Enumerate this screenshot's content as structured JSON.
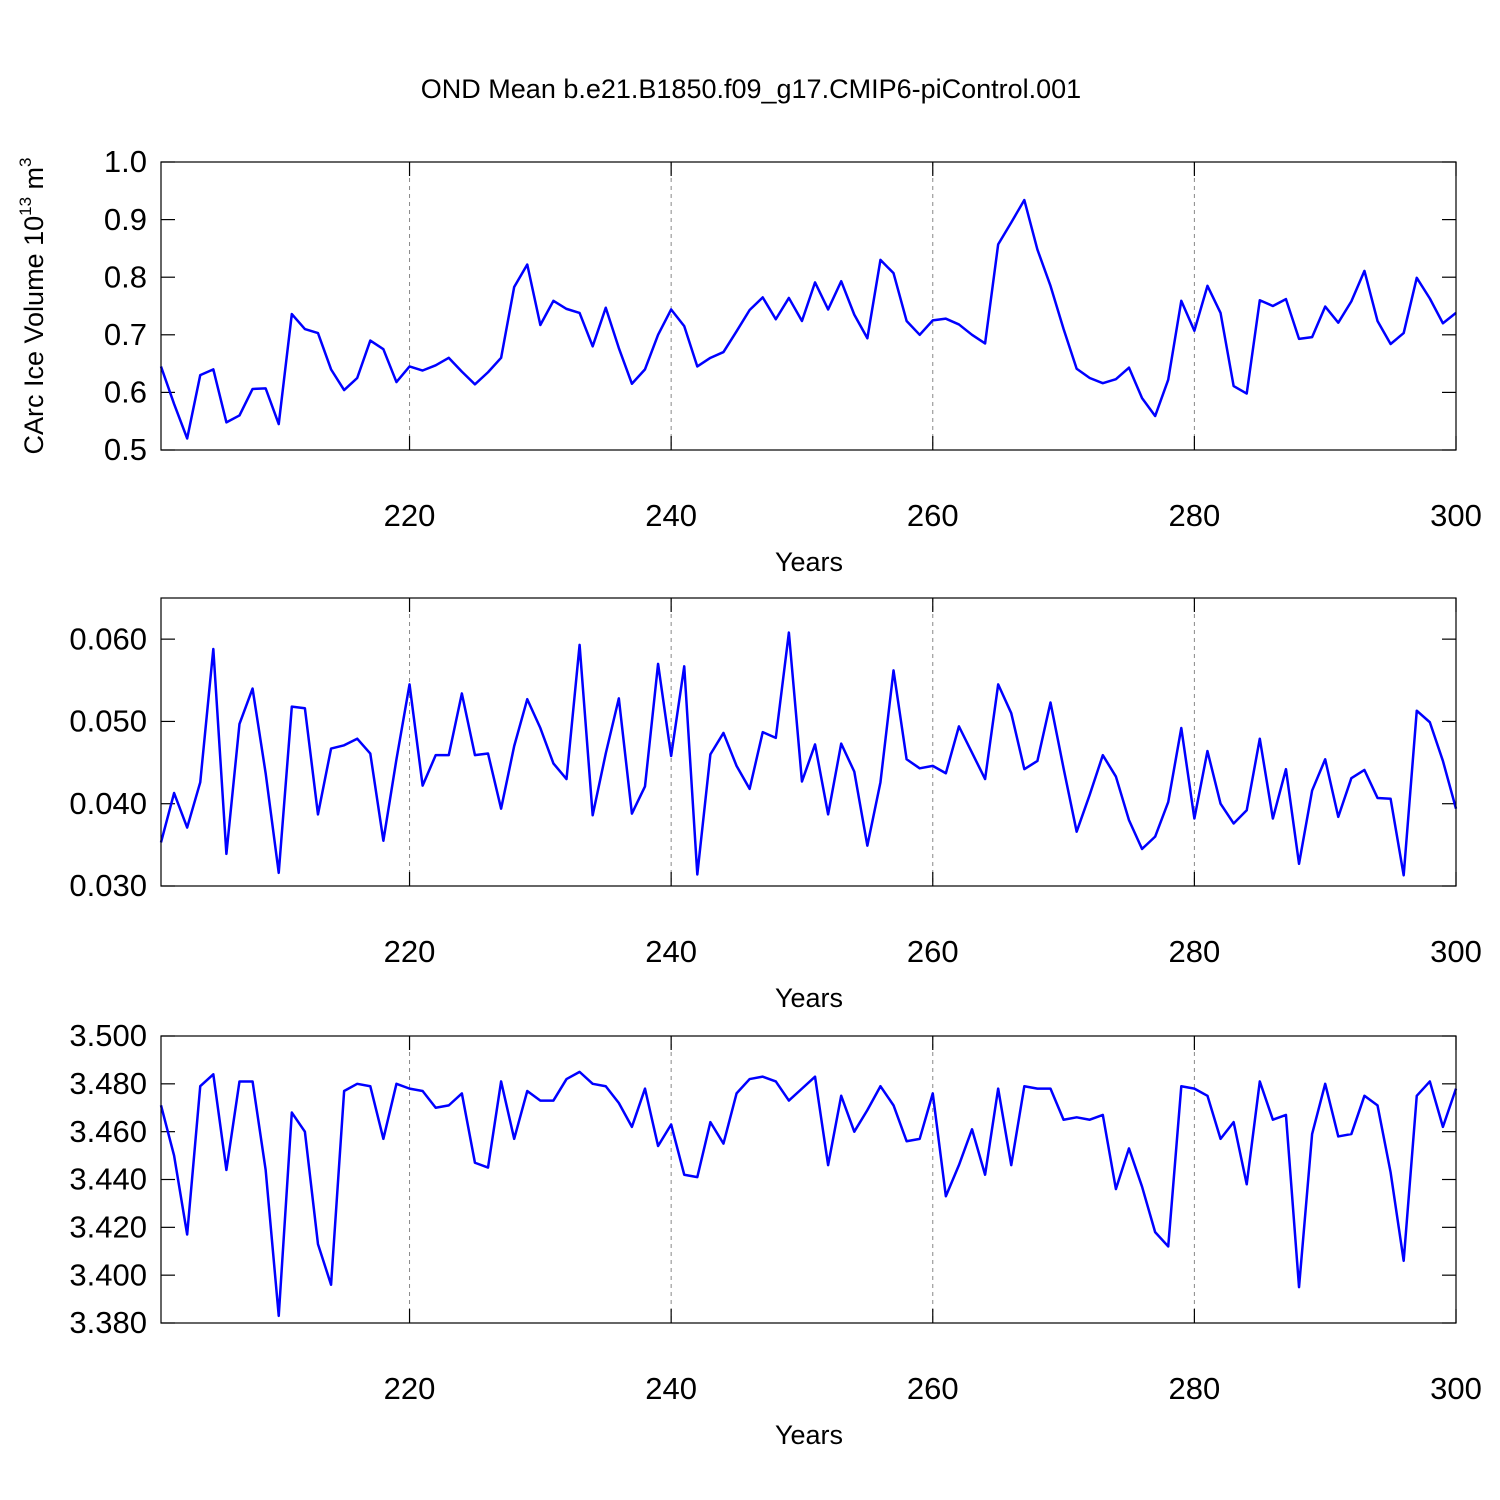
{
  "chart_data": [
    {
      "type": "line",
      "title": "OND Mean b.e21.B1850.f09_g17.CMIP6-piControl.001",
      "xlabel": "Years",
      "ylabel": [
        {
          "text": "CArc Ice Volume 10"
        },
        {
          "sup": "13"
        },
        {
          "text": " m"
        },
        {
          "sup": "3"
        }
      ],
      "xlim": [
        201,
        300
      ],
      "xticks": [
        220,
        240,
        260,
        280,
        300
      ],
      "ylim": [
        0.5,
        1.0
      ],
      "yticks": [
        0.5,
        0.6,
        0.7,
        0.8,
        0.9,
        {
          "value": 1,
          "label": "1.0"
        }
      ],
      "xgrid": true,
      "color": "#0000ff",
      "x": [
        201,
        202,
        203,
        204,
        205,
        206,
        207,
        208,
        209,
        210,
        211,
        212,
        213,
        214,
        215,
        216,
        217,
        218,
        219,
        220,
        221,
        222,
        223,
        224,
        225,
        226,
        227,
        228,
        229,
        230,
        231,
        232,
        233,
        234,
        235,
        236,
        237,
        238,
        239,
        240,
        241,
        242,
        243,
        244,
        245,
        246,
        247,
        248,
        249,
        250,
        251,
        252,
        253,
        254,
        255,
        256,
        257,
        258,
        259,
        260,
        261,
        262,
        263,
        264,
        265,
        266,
        267,
        268,
        269,
        270,
        271,
        272,
        273,
        274,
        275,
        276,
        277,
        278,
        279,
        280,
        281,
        282,
        283,
        284,
        285,
        286,
        287,
        288,
        289,
        290,
        291,
        292,
        293,
        294,
        295,
        296,
        297,
        298,
        299,
        300
      ],
      "values": [
        0.645,
        0.58,
        0.52,
        0.63,
        0.64,
        0.548,
        0.56,
        0.606,
        0.607,
        0.545,
        0.736,
        0.71,
        0.703,
        0.64,
        0.604,
        0.625,
        0.69,
        0.675,
        0.618,
        0.645,
        0.638,
        0.647,
        0.66,
        0.636,
        0.614,
        0.635,
        0.66,
        0.783,
        0.822,
        0.717,
        0.759,
        0.745,
        0.738,
        0.68,
        0.747,
        0.677,
        0.615,
        0.64,
        0.7,
        0.744,
        0.715,
        0.645,
        0.66,
        0.67,
        0.706,
        0.743,
        0.765,
        0.727,
        0.764,
        0.724,
        0.791,
        0.744,
        0.793,
        0.735,
        0.694,
        0.83,
        0.807,
        0.724,
        0.7,
        0.725,
        0.728,
        0.718,
        0.7,
        0.685,
        0.857,
        0.895,
        0.934,
        0.848,
        0.785,
        0.71,
        0.641,
        0.625,
        0.616,
        0.623,
        0.643,
        0.59,
        0.559,
        0.622,
        0.759,
        0.707,
        0.785,
        0.738,
        0.611,
        0.598,
        0.76,
        0.75,
        0.762,
        0.693,
        0.696,
        0.749,
        0.721,
        0.758,
        0.811,
        0.724,
        0.684,
        0.703,
        0.799,
        0.763,
        0.72,
        0.738
      ]
    },
    {
      "type": "line",
      "xlabel": "Years",
      "xlim": [
        201,
        300
      ],
      "xticks": [
        220,
        240,
        260,
        280,
        300
      ],
      "ylim": [
        0.03,
        0.065
      ],
      "yticks": [
        {
          "value": 0.03,
          "label": "0.030"
        },
        {
          "value": 0.04,
          "label": "0.040"
        },
        {
          "value": 0.05,
          "label": "0.050"
        },
        {
          "value": 0.06,
          "label": "0.060"
        }
      ],
      "xgrid": true,
      "color": "#0000ff",
      "x": [
        201,
        202,
        203,
        204,
        205,
        206,
        207,
        208,
        209,
        210,
        211,
        212,
        213,
        214,
        215,
        216,
        217,
        218,
        219,
        220,
        221,
        222,
        223,
        224,
        225,
        226,
        227,
        228,
        229,
        230,
        231,
        232,
        233,
        234,
        235,
        236,
        237,
        238,
        239,
        240,
        241,
        242,
        243,
        244,
        245,
        246,
        247,
        248,
        249,
        250,
        251,
        252,
        253,
        254,
        255,
        256,
        257,
        258,
        259,
        260,
        261,
        262,
        263,
        264,
        265,
        266,
        267,
        268,
        269,
        270,
        271,
        272,
        273,
        274,
        275,
        276,
        277,
        278,
        279,
        280,
        281,
        282,
        283,
        284,
        285,
        286,
        287,
        288,
        289,
        290,
        291,
        292,
        293,
        294,
        295,
        296,
        297,
        298,
        299,
        300
      ],
      "values": [
        0.0353,
        0.0413,
        0.0371,
        0.0426,
        0.0588,
        0.0339,
        0.0497,
        0.054,
        0.0437,
        0.0316,
        0.0518,
        0.0516,
        0.0387,
        0.0467,
        0.0471,
        0.0479,
        0.0461,
        0.0355,
        0.0454,
        0.0545,
        0.0422,
        0.0459,
        0.0459,
        0.0534,
        0.0459,
        0.0461,
        0.0394,
        0.047,
        0.0527,
        0.0492,
        0.0449,
        0.043,
        0.0593,
        0.0386,
        0.0461,
        0.0528,
        0.0388,
        0.0421,
        0.057,
        0.0458,
        0.0567,
        0.0314,
        0.046,
        0.0486,
        0.0446,
        0.0418,
        0.0487,
        0.048,
        0.0608,
        0.0427,
        0.0472,
        0.0387,
        0.0473,
        0.0439,
        0.0349,
        0.0426,
        0.0562,
        0.0454,
        0.0443,
        0.0446,
        0.0437,
        0.0494,
        0.0462,
        0.043,
        0.0545,
        0.051,
        0.0442,
        0.0452,
        0.0523,
        0.0443,
        0.0366,
        0.0411,
        0.0459,
        0.0433,
        0.038,
        0.0345,
        0.036,
        0.0402,
        0.0492,
        0.0382,
        0.0464,
        0.04,
        0.0376,
        0.0392,
        0.0479,
        0.0382,
        0.0442,
        0.0327,
        0.0416,
        0.0454,
        0.0384,
        0.0431,
        0.0441,
        0.0407,
        0.0406,
        0.0313,
        0.0513,
        0.0499,
        0.0452,
        0.0394
      ]
    },
    {
      "type": "line",
      "xlabel": "Years",
      "xlim": [
        201,
        300
      ],
      "xticks": [
        220,
        240,
        260,
        280,
        300
      ],
      "ylim": [
        3.38,
        3.5
      ],
      "yticks": [
        {
          "value": 3.38,
          "label": "3.380"
        },
        {
          "value": 3.4,
          "label": "3.400"
        },
        {
          "value": 3.42,
          "label": "3.420"
        },
        {
          "value": 3.44,
          "label": "3.440"
        },
        {
          "value": 3.46,
          "label": "3.460"
        },
        {
          "value": 3.48,
          "label": "3.480"
        },
        {
          "value": 3.5,
          "label": "3.500"
        }
      ],
      "xgrid": true,
      "color": "#0000ff",
      "x": [
        201,
        202,
        203,
        204,
        205,
        206,
        207,
        208,
        209,
        210,
        211,
        212,
        213,
        214,
        215,
        216,
        217,
        218,
        219,
        220,
        221,
        222,
        223,
        224,
        225,
        226,
        227,
        228,
        229,
        230,
        231,
        232,
        233,
        234,
        235,
        236,
        237,
        238,
        239,
        240,
        241,
        242,
        243,
        244,
        245,
        246,
        247,
        248,
        249,
        250,
        251,
        252,
        253,
        254,
        255,
        256,
        257,
        258,
        259,
        260,
        261,
        262,
        263,
        264,
        265,
        266,
        267,
        268,
        269,
        270,
        271,
        272,
        273,
        274,
        275,
        276,
        277,
        278,
        279,
        280,
        281,
        282,
        283,
        284,
        285,
        286,
        287,
        288,
        289,
        290,
        291,
        292,
        293,
        294,
        295,
        296,
        297,
        298,
        299,
        300
      ],
      "values": [
        3.471,
        3.45,
        3.417,
        3.479,
        3.484,
        3.444,
        3.481,
        3.481,
        3.444,
        3.383,
        3.468,
        3.46,
        3.413,
        3.396,
        3.477,
        3.48,
        3.479,
        3.457,
        3.48,
        3.478,
        3.477,
        3.47,
        3.471,
        3.476,
        3.447,
        3.445,
        3.481,
        3.457,
        3.477,
        3.473,
        3.473,
        3.482,
        3.485,
        3.48,
        3.479,
        3.472,
        3.462,
        3.478,
        3.454,
        3.463,
        3.442,
        3.441,
        3.464,
        3.455,
        3.476,
        3.482,
        3.483,
        3.481,
        3.473,
        3.478,
        3.483,
        3.446,
        3.475,
        3.46,
        3.469,
        3.479,
        3.471,
        3.456,
        3.457,
        3.476,
        3.433,
        3.446,
        3.461,
        3.442,
        3.478,
        3.446,
        3.479,
        3.478,
        3.478,
        3.465,
        3.466,
        3.465,
        3.467,
        3.436,
        3.453,
        3.437,
        3.418,
        3.412,
        3.479,
        3.478,
        3.475,
        3.457,
        3.464,
        3.438,
        3.481,
        3.465,
        3.467,
        3.395,
        3.459,
        3.48,
        3.458,
        3.459,
        3.475,
        3.471,
        3.443,
        3.406,
        3.475,
        3.481,
        3.462,
        3.478
      ]
    }
  ]
}
